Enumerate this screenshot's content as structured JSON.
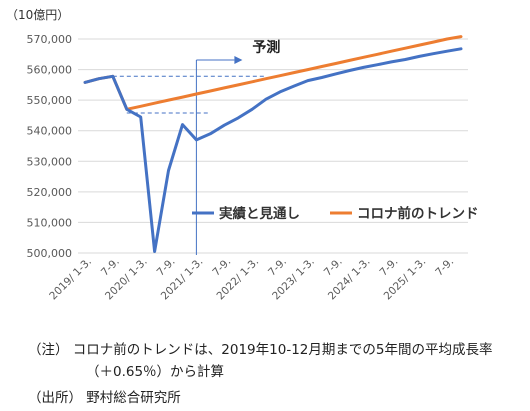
{
  "chart_data": {
    "type": "line",
    "unit_label": "（10億円）",
    "y_ticks": [
      "500,000",
      "510,000",
      "520,000",
      "530,000",
      "540,000",
      "550,000",
      "560,000",
      "570,000"
    ],
    "ylim": [
      500000,
      570000
    ],
    "x_ticks": [
      "2019/ 1-3.",
      "7-9.",
      "2020/ 1-3.",
      "7-9.",
      "2021/ 1-3.",
      "7-9.",
      "2022/ 1-3.",
      "7-9.",
      "2023/ 1-3.",
      "7-9.",
      "2024/ 1-3.",
      "7-9.",
      "2025/ 1-3.",
      "7-9."
    ],
    "quarters": [
      "2019 Q1",
      "2019 Q2",
      "2019 Q3",
      "2019 Q4",
      "2020 Q1",
      "2020 Q2",
      "2020 Q3",
      "2020 Q4",
      "2021 Q1",
      "2021 Q2",
      "2021 Q3",
      "2021 Q4",
      "2022 Q1",
      "2022 Q2",
      "2022 Q3",
      "2022 Q4",
      "2023 Q1",
      "2023 Q2",
      "2023 Q3",
      "2023 Q4",
      "2024 Q1",
      "2024 Q2",
      "2024 Q3",
      "2024 Q4",
      "2025 Q1",
      "2025 Q2",
      "2025 Q3",
      "2025 Q4"
    ],
    "series": [
      {
        "name": "実績と見通し",
        "color": "#4472C4",
        "values": [
          555800,
          557000,
          557800,
          547000,
          544500,
          500500,
          527000,
          542000,
          537000,
          539000,
          541800,
          544200,
          547000,
          550300,
          552700,
          554600,
          556400,
          557400,
          558600,
          559700,
          560700,
          561600,
          562500,
          563300,
          564300,
          565200,
          566000,
          566800
        ]
      },
      {
        "name": "コロナ前のトレンド",
        "color": "#ED7D31",
        "values": [
          555800,
          557000,
          557800,
          547000,
          548000,
          549000,
          550000,
          551000,
          552000,
          553000,
          554000,
          555000,
          556000,
          557000,
          558000,
          559000,
          560000,
          561000,
          562000,
          563000,
          564000,
          565000,
          566000,
          567000,
          568000,
          569000,
          570000,
          570800
        ]
      }
    ],
    "annotation": "予測",
    "forecast_start": "2021 Q1",
    "legend_placement": "center-right"
  },
  "notes": {
    "note_line1": "（注） コロナ前のトレンドは、2019年10-12月期までの5年間の平均成長率",
    "note_line2": "（＋0.65％）から計算",
    "source": "（出所） 野村総合研究所"
  }
}
